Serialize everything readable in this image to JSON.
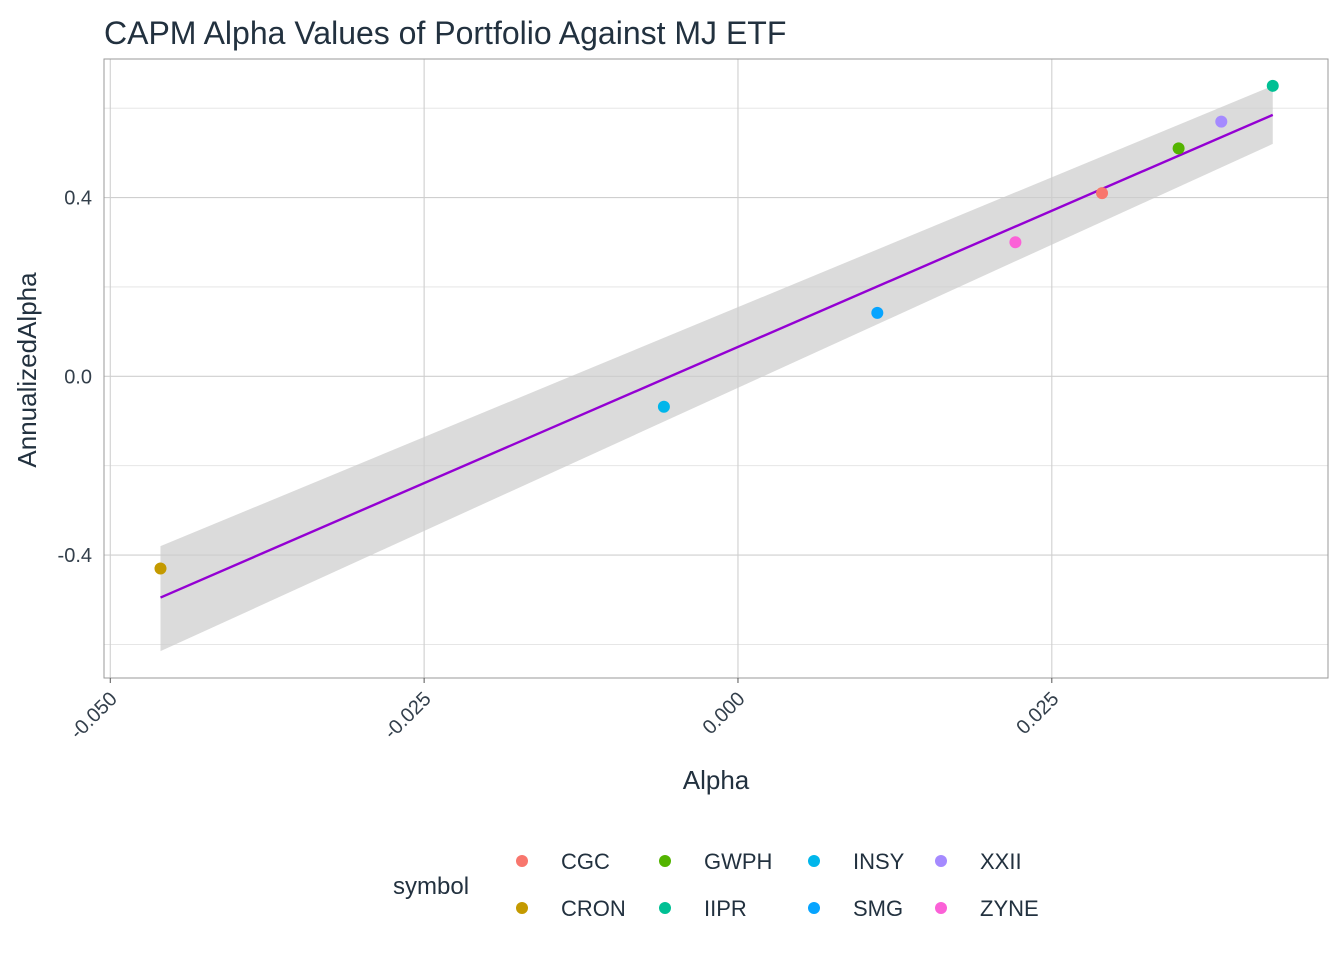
{
  "chart_data": {
    "type": "scatter",
    "title": "CAPM Alpha Values of Portfolio Against MJ ETF",
    "xlabel": "Alpha",
    "ylabel": "AnnualizedAlpha",
    "xlim": [
      -0.0505,
      0.047
    ],
    "ylim": [
      -0.675,
      0.71
    ],
    "x_ticks": [
      -0.05,
      -0.025,
      0.0,
      0.025
    ],
    "x_tick_labels": [
      "-0.050",
      "-0.025",
      "0.000",
      "0.025"
    ],
    "y_ticks": [
      -0.4,
      0.0,
      0.4
    ],
    "y_tick_labels": [
      "-0.4",
      "0.0",
      "0.4"
    ],
    "grid": true,
    "legend_position": "bottom",
    "legend_title": "symbol",
    "series": [
      {
        "name": "CGC",
        "color": "#F8766D",
        "x": 0.029,
        "y": 0.41
      },
      {
        "name": "CRON",
        "color": "#C49A00",
        "x": -0.046,
        "y": -0.43
      },
      {
        "name": "GWPH",
        "color": "#53B400",
        "x": 0.0351,
        "y": 0.51
      },
      {
        "name": "IIPR",
        "color": "#00C094",
        "x": 0.0426,
        "y": 0.65
      },
      {
        "name": "INSY",
        "color": "#00B6EB",
        "x": -0.0059,
        "y": -0.068
      },
      {
        "name": "SMG",
        "color": "#06A4FF",
        "x": 0.0111,
        "y": 0.142
      },
      {
        "name": "XXII",
        "color": "#A58AFF",
        "x": 0.0385,
        "y": 0.57
      },
      {
        "name": "ZYNE",
        "color": "#FB61D7",
        "x": 0.0221,
        "y": 0.3
      }
    ],
    "fit_line": {
      "color": "#9400D3",
      "x": [
        -0.046,
        0.0426
      ],
      "y": [
        -0.495,
        0.585
      ],
      "band_lower": [
        -0.615,
        0.52
      ],
      "band_upper": [
        -0.38,
        0.65
      ]
    }
  }
}
